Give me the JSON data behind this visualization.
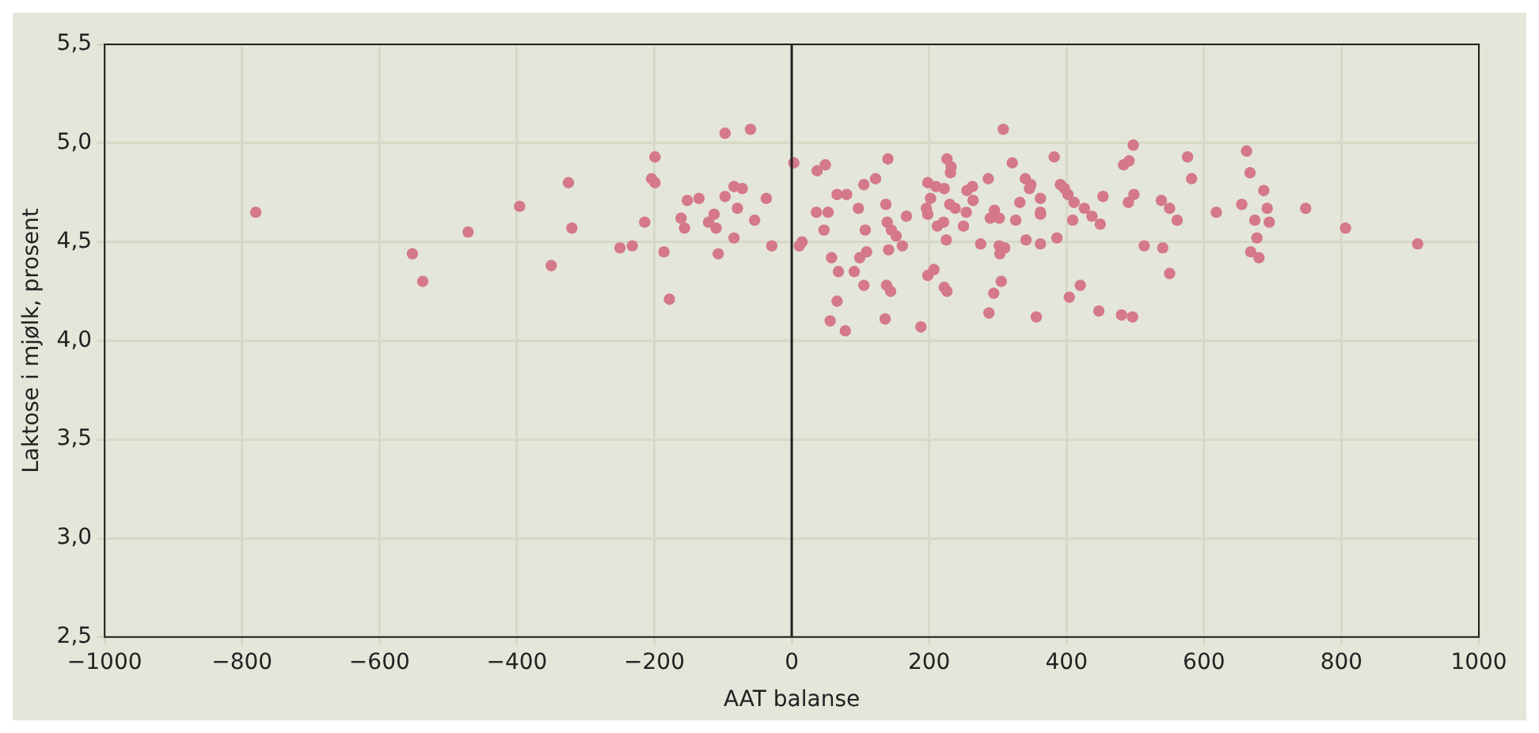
{
  "chart_data": {
    "type": "scatter",
    "xlabel": "AAT balanse",
    "ylabel": "Laktose i mjølk, prosent",
    "xlim": [
      -1000,
      1000
    ],
    "ylim": [
      2.5,
      5.5
    ],
    "xticks": [
      {
        "value": -1000,
        "label": "−1000"
      },
      {
        "value": -800,
        "label": "−800"
      },
      {
        "value": -600,
        "label": "−600"
      },
      {
        "value": -400,
        "label": "−400"
      },
      {
        "value": -200,
        "label": "−200"
      },
      0,
      200,
      400,
      600,
      800,
      1000
    ],
    "yticks": [
      {
        "value": 2.5,
        "label": "2,5"
      },
      {
        "value": 3,
        "label": "3,0"
      },
      {
        "value": 3.5,
        "label": "3,5"
      },
      {
        "value": 4,
        "label": "4,0"
      },
      {
        "value": 4.5,
        "label": "4,5"
      },
      {
        "value": 5,
        "label": "5,0"
      },
      {
        "value": 5.5,
        "label": "5,5"
      }
    ],
    "grid": true,
    "legend": false,
    "marker": "circle",
    "ref_lines": [
      {
        "axis": "x",
        "value": 0,
        "color": "#222222"
      }
    ],
    "series": [
      {
        "color": "#d4788a",
        "x": [
          -780,
          -552,
          -537,
          -471,
          -396,
          -350,
          -97,
          -60,
          -325,
          -320,
          -199,
          -204,
          -199,
          -214,
          -250,
          -232,
          -186,
          -178,
          -152,
          -135,
          -161,
          -156,
          -97,
          -113,
          -121,
          -110,
          -84,
          -72,
          -79,
          -54,
          -84,
          -107,
          -37,
          -29,
          3,
          11,
          15,
          37,
          49,
          140,
          308,
          226,
          232,
          231,
          321,
          382,
          66,
          80,
          105,
          122,
          198,
          210,
          222,
          286,
          340,
          348,
          346,
          255,
          263,
          36,
          53,
          97,
          137,
          167,
          196,
          198,
          202,
          230,
          238,
          254,
          264,
          295,
          289,
          302,
          332,
          362,
          362,
          362,
          326,
          107,
          47,
          139,
          145,
          152,
          161,
          141,
          212,
          221,
          250,
          225,
          275,
          302,
          310,
          303,
          341,
          362,
          58,
          99,
          109,
          68,
          91,
          105,
          138,
          144,
          198,
          207,
          222,
          226,
          305,
          294,
          287,
          356,
          66,
          56,
          78,
          136,
          188,
          497,
          483,
          491,
          576,
          582,
          662,
          667,
          687,
          391,
          397,
          402,
          411,
          453,
          490,
          498,
          426,
          409,
          437,
          449,
          386,
          538,
          550,
          561,
          513,
          540,
          550,
          618,
          655,
          692,
          674,
          695,
          677,
          668,
          680,
          420,
          404,
          447,
          480,
          496,
          748,
          806,
          911
        ],
        "values": [
          4.65,
          4.44,
          4.3,
          4.55,
          4.68,
          4.38,
          5.05,
          5.07,
          4.8,
          4.57,
          4.93,
          4.82,
          4.8,
          4.6,
          4.47,
          4.48,
          4.45,
          4.21,
          4.71,
          4.72,
          4.62,
          4.57,
          4.73,
          4.64,
          4.6,
          4.57,
          4.78,
          4.77,
          4.67,
          4.61,
          4.52,
          4.44,
          4.72,
          4.48,
          4.9,
          4.48,
          4.5,
          4.86,
          4.89,
          4.92,
          5.07,
          4.92,
          4.88,
          4.85,
          4.9,
          4.93,
          4.74,
          4.74,
          4.79,
          4.82,
          4.8,
          4.78,
          4.77,
          4.82,
          4.82,
          4.79,
          4.77,
          4.76,
          4.78,
          4.65,
          4.65,
          4.67,
          4.69,
          4.63,
          4.67,
          4.64,
          4.72,
          4.69,
          4.67,
          4.65,
          4.71,
          4.66,
          4.62,
          4.62,
          4.7,
          4.72,
          4.65,
          4.64,
          4.61,
          4.56,
          4.56,
          4.6,
          4.56,
          4.53,
          4.48,
          4.46,
          4.58,
          4.6,
          4.58,
          4.51,
          4.49,
          4.48,
          4.47,
          4.44,
          4.51,
          4.49,
          4.42,
          4.42,
          4.45,
          4.35,
          4.35,
          4.28,
          4.28,
          4.25,
          4.33,
          4.36,
          4.27,
          4.25,
          4.3,
          4.24,
          4.14,
          4.12,
          4.2,
          4.1,
          4.05,
          4.11,
          4.07,
          4.99,
          4.89,
          4.91,
          4.93,
          4.82,
          4.96,
          4.85,
          4.76,
          4.79,
          4.77,
          4.74,
          4.7,
          4.73,
          4.7,
          4.74,
          4.67,
          4.61,
          4.63,
          4.59,
          4.52,
          4.71,
          4.67,
          4.61,
          4.48,
          4.47,
          4.34,
          4.65,
          4.69,
          4.67,
          4.61,
          4.6,
          4.52,
          4.45,
          4.42,
          4.28,
          4.22,
          4.15,
          4.13,
          4.12,
          4.67,
          4.57,
          4.49
        ]
      }
    ]
  }
}
